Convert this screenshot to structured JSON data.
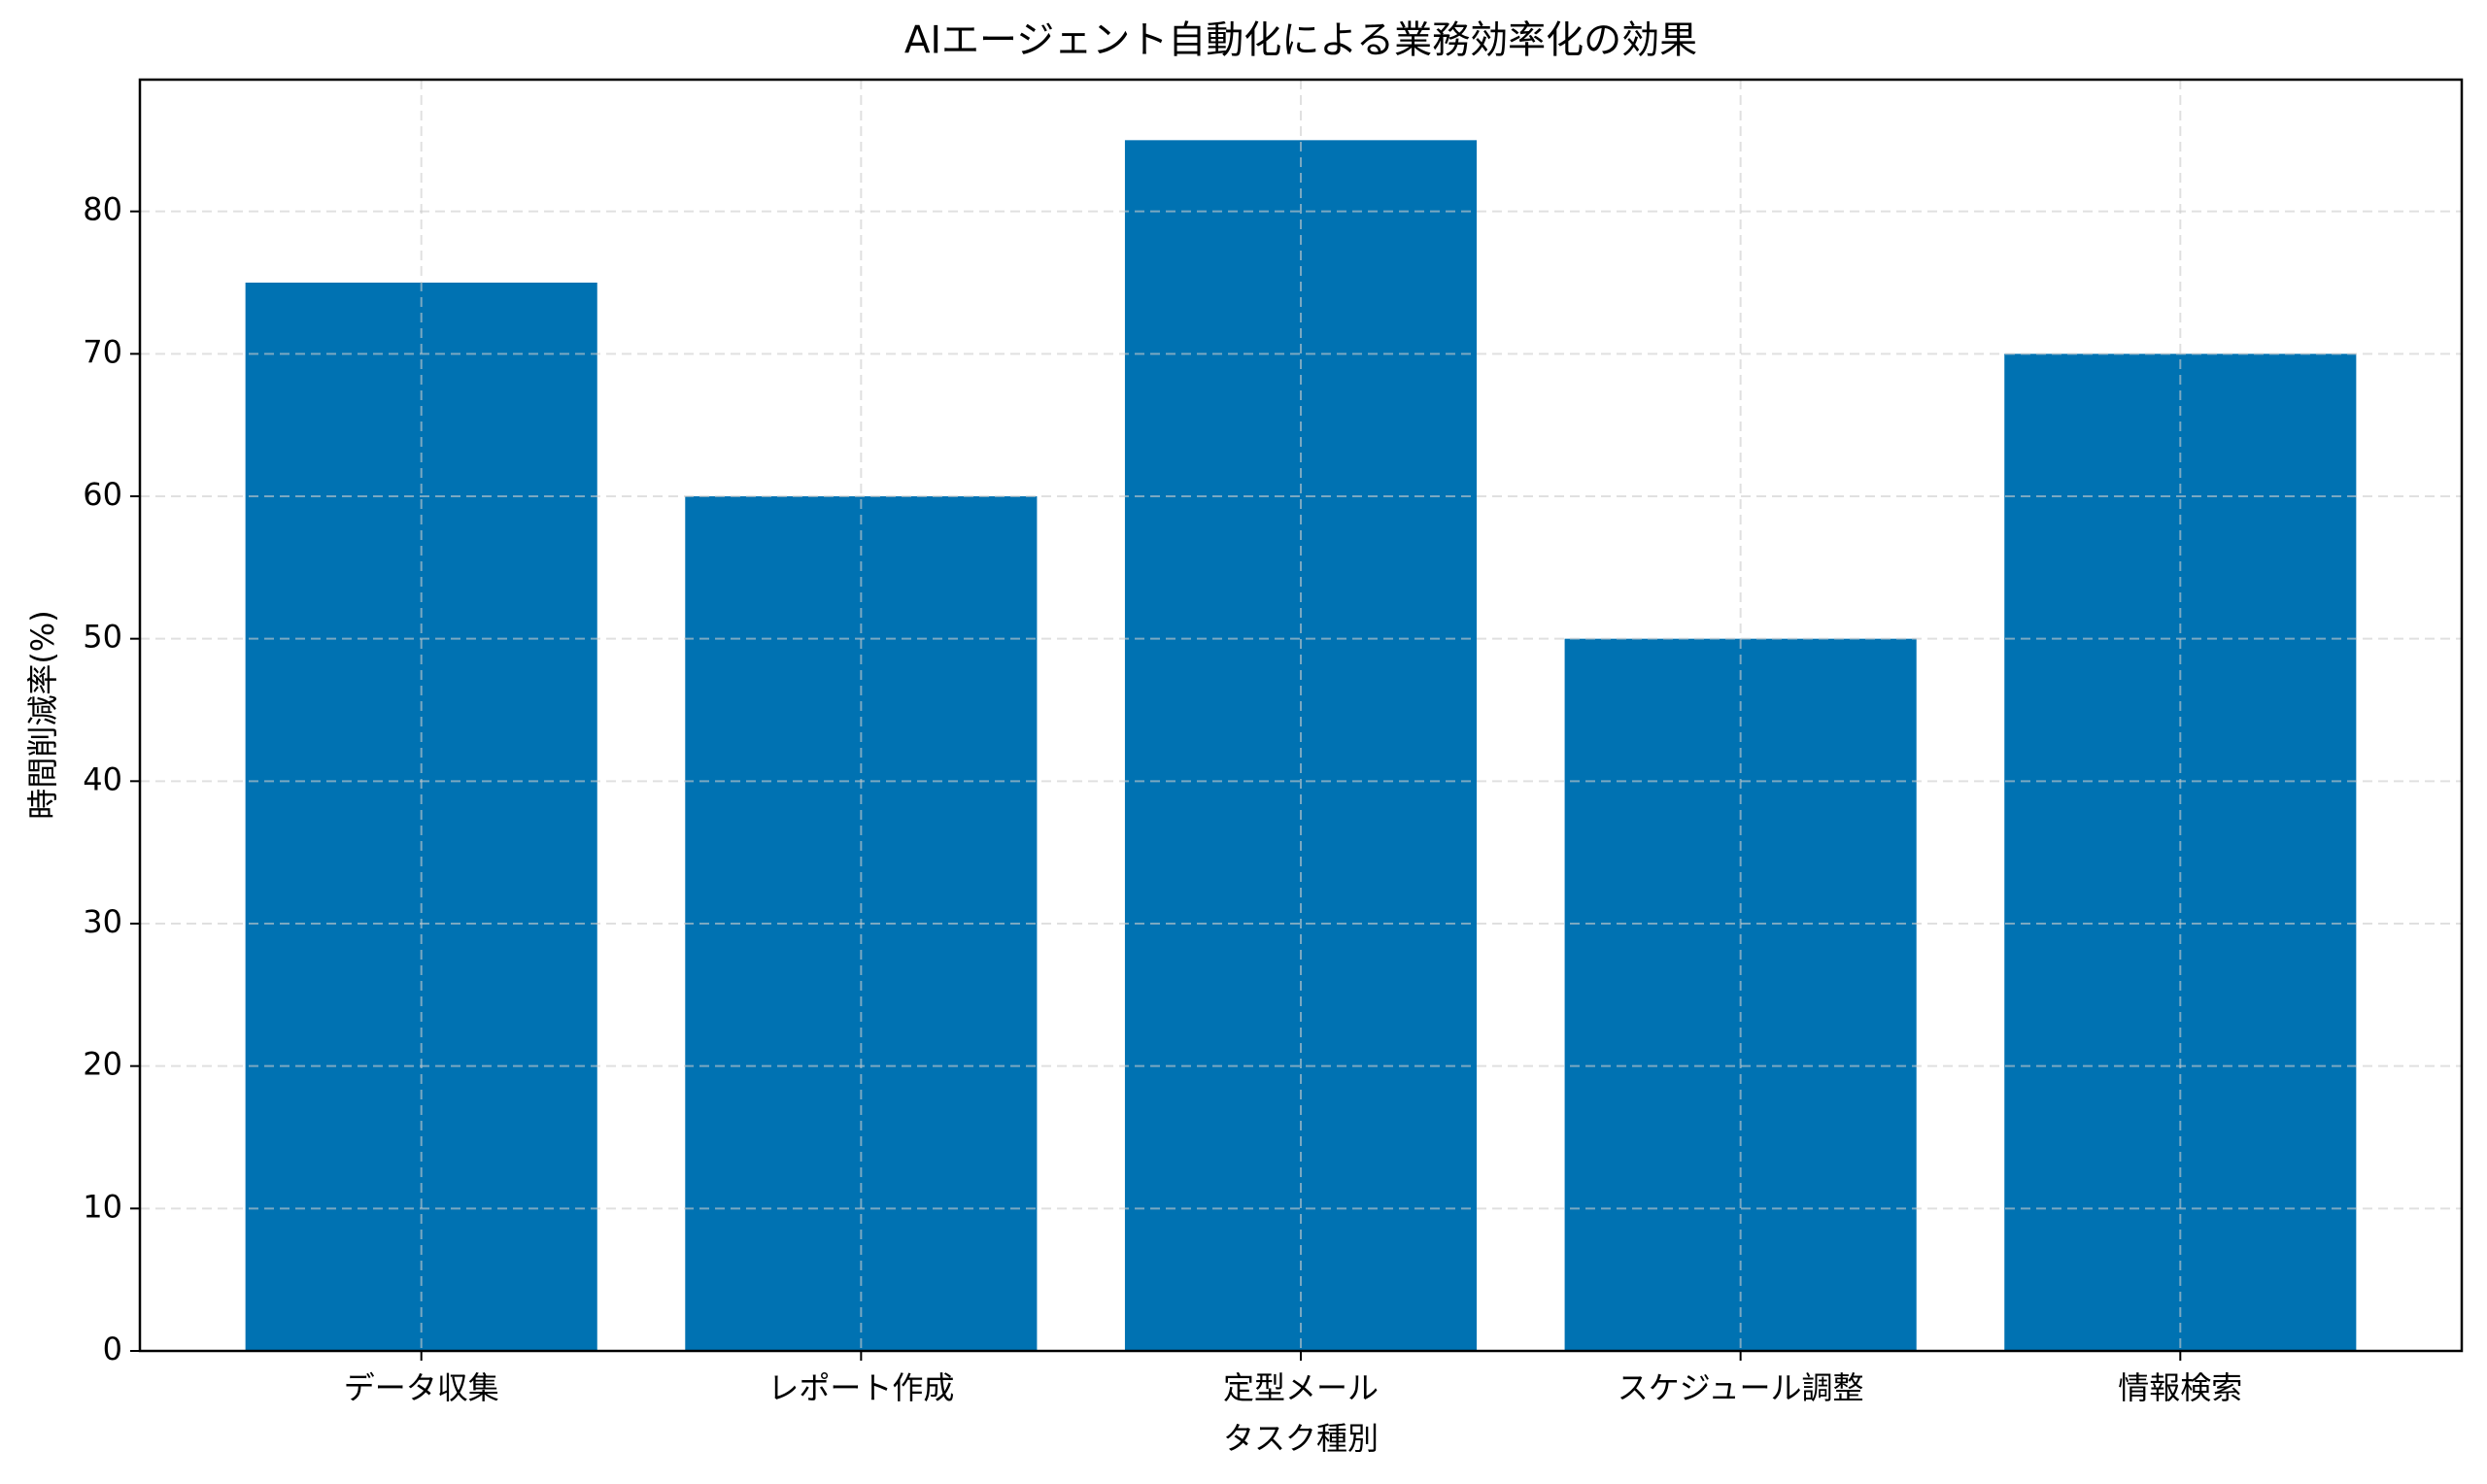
{
  "chart_data": {
    "type": "bar",
    "title": "AIエージェント自動化による業務効率化の効果",
    "x_label": "タスク種別",
    "y_label": "時間削減率(%)",
    "categories": [
      "データ収集",
      "レポート作成",
      "定型メール",
      "スケジュール調整",
      "情報検索"
    ],
    "values": [
      75,
      60,
      85,
      50,
      70
    ],
    "color": "#0072b2",
    "ylim": [
      0,
      89.25
    ],
    "yticks": [
      0,
      10,
      20,
      30,
      40,
      50,
      60,
      70,
      80
    ],
    "grid": true
  }
}
